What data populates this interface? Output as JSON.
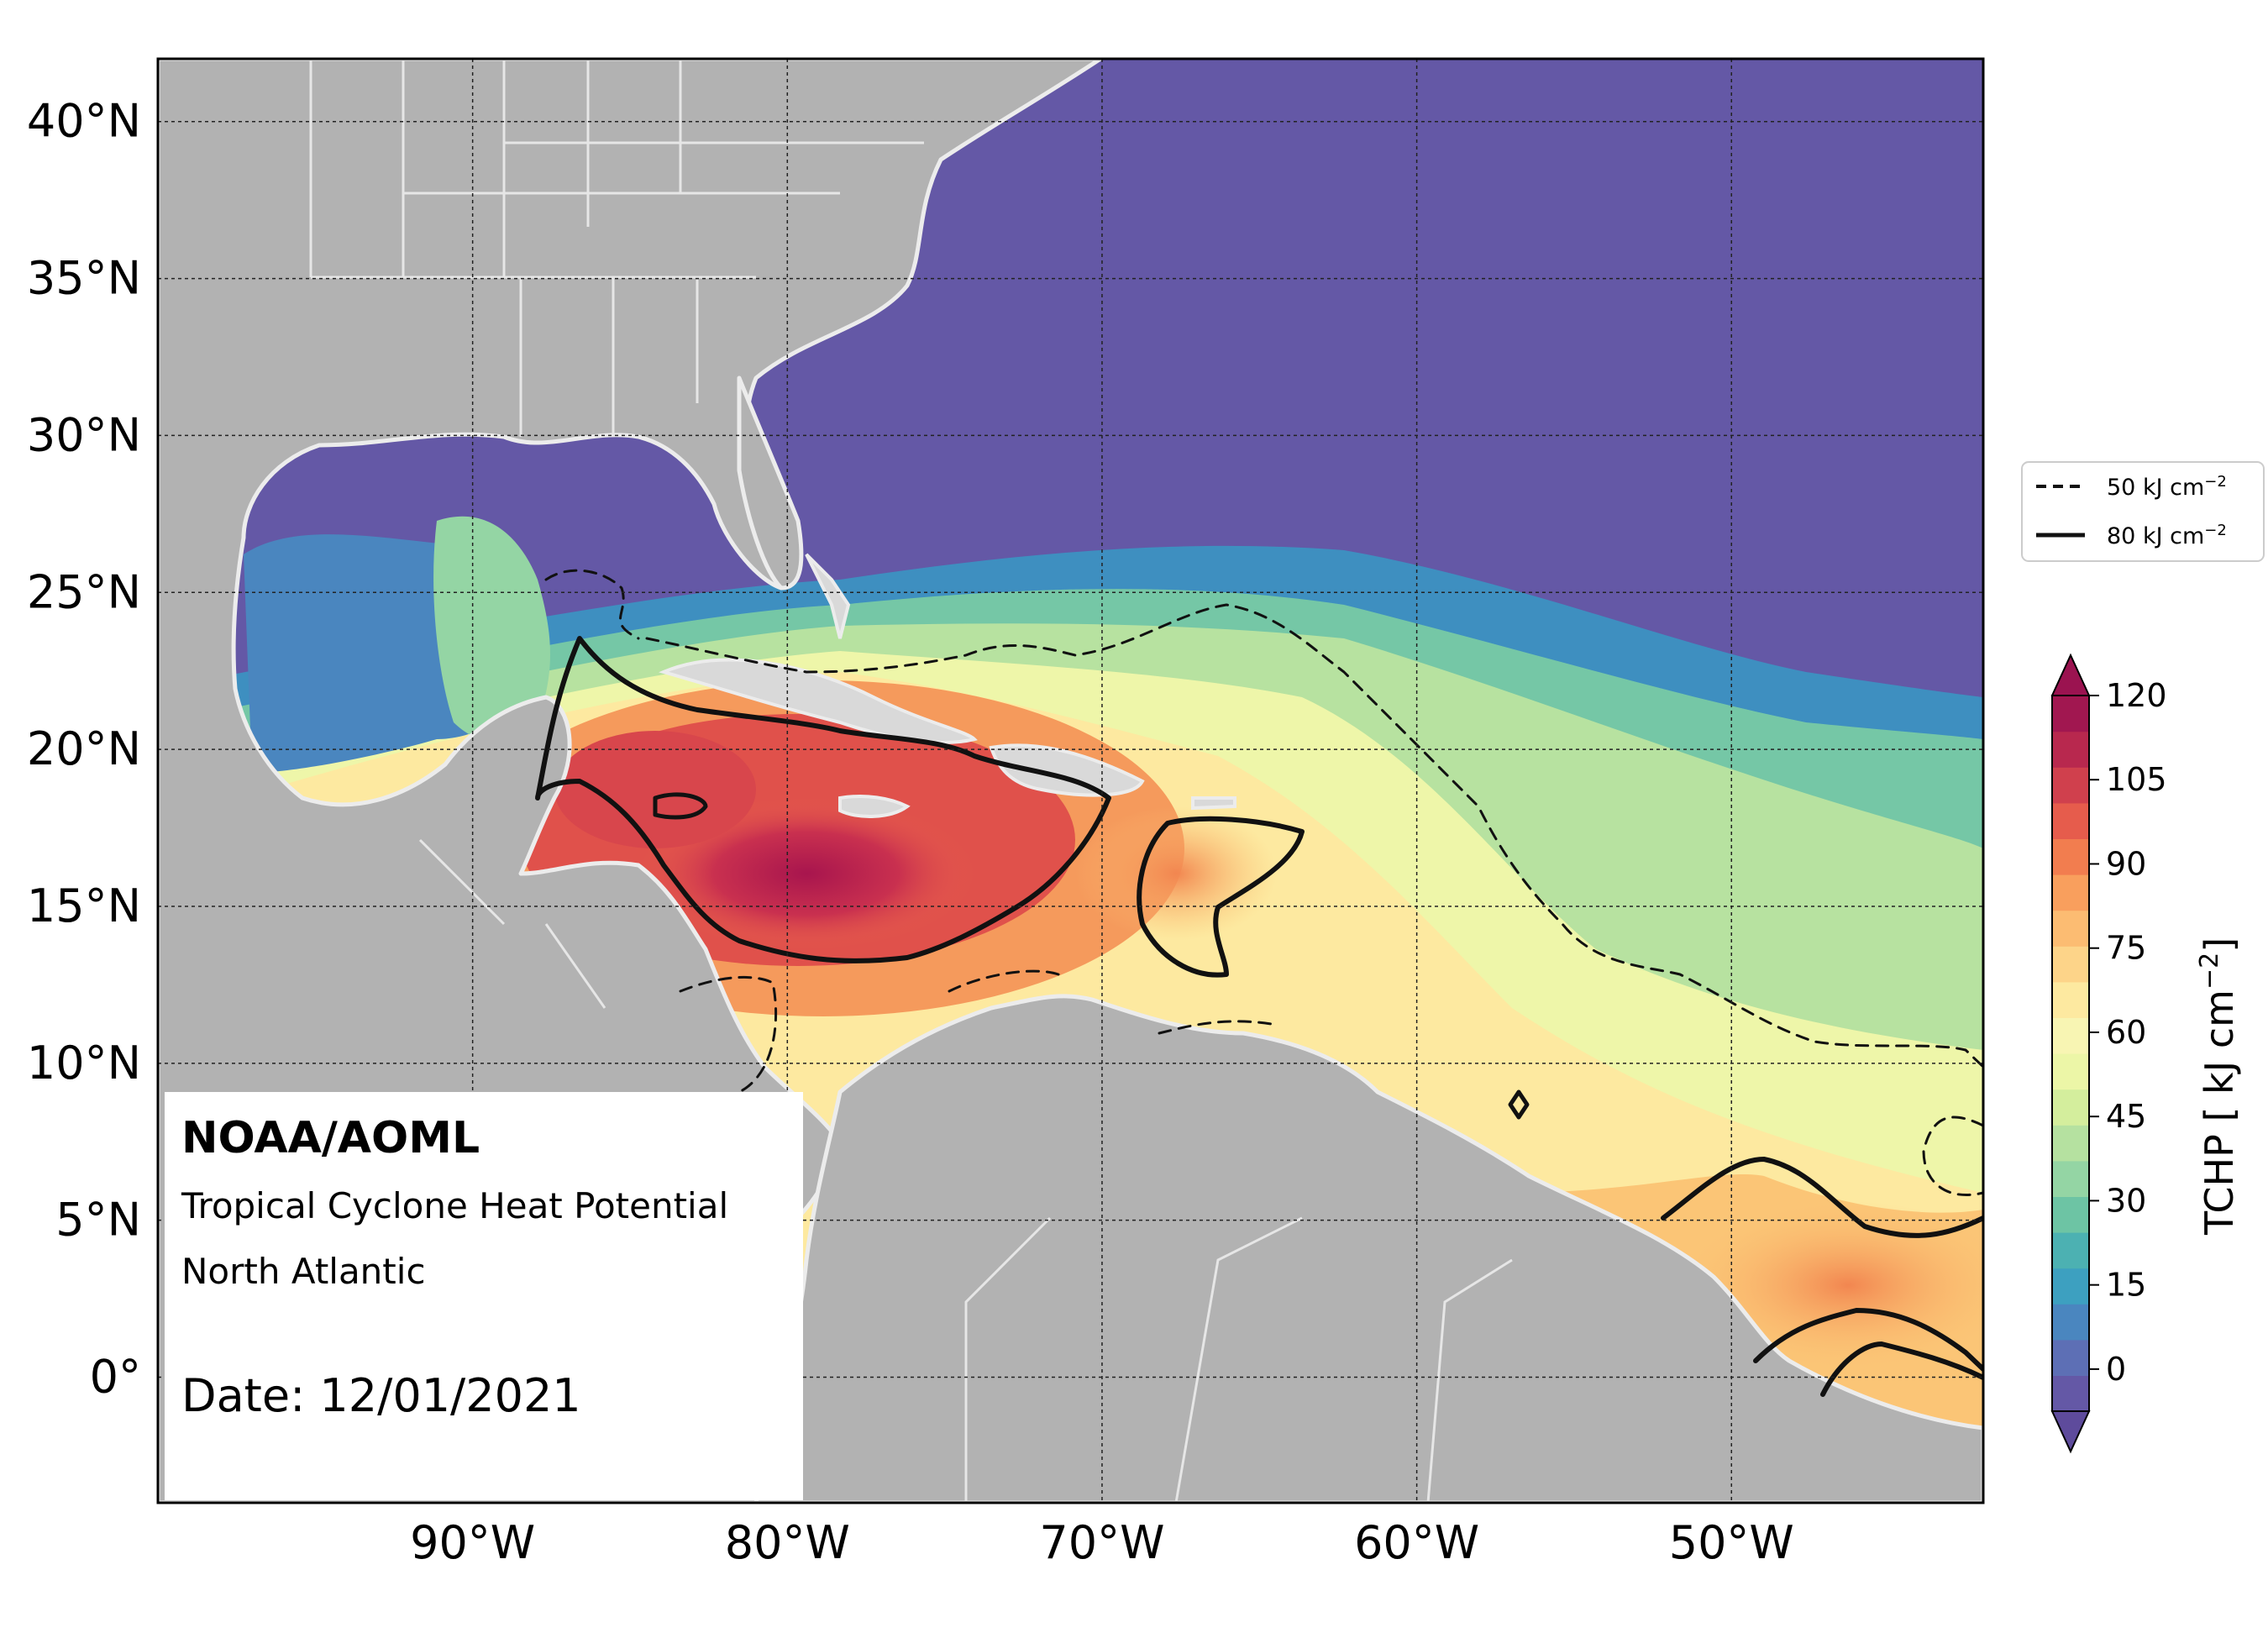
{
  "map": {
    "region": "North Atlantic",
    "lon_range": [
      -100,
      -42
    ],
    "lat_range": [
      -4,
      42
    ],
    "lat_ticks": [
      {
        "value": 40,
        "label": "40°N"
      },
      {
        "value": 35,
        "label": "35°N"
      },
      {
        "value": 30,
        "label": "30°N"
      },
      {
        "value": 25,
        "label": "25°N"
      },
      {
        "value": 20,
        "label": "20°N"
      },
      {
        "value": 15,
        "label": "15°N"
      },
      {
        "value": 10,
        "label": "10°N"
      },
      {
        "value": 5,
        "label": "5°N"
      },
      {
        "value": 0,
        "label": "0°"
      }
    ],
    "lon_ticks": [
      {
        "value": -90,
        "label": "90°W"
      },
      {
        "value": -80,
        "label": "80°W"
      },
      {
        "value": -70,
        "label": "70°W"
      },
      {
        "value": -60,
        "label": "60°W"
      },
      {
        "value": -50,
        "label": "50°W"
      }
    ],
    "gridlines": true
  },
  "info": {
    "org": "NOAA/AOML",
    "product": "Tropical Cyclone Heat Potential",
    "region": "North Atlantic",
    "date": "Date: 12/01/2021"
  },
  "legend": {
    "items": [
      {
        "label": "50 kJ cm",
        "sup": "−2",
        "style": "dashed"
      },
      {
        "label": "80 kJ cm",
        "sup": "−2",
        "style": "solid"
      }
    ]
  },
  "colorbar": {
    "title": "TCHP [ kJ cm",
    "title_sup": "−2",
    "title_end": "]",
    "ticks": [
      "120",
      "105",
      "90",
      "75",
      "60",
      "45",
      "30",
      "15",
      "0"
    ],
    "colors": [
      "#6458a6",
      "#5d6fb5",
      "#4a86bf",
      "#3da0c0",
      "#4cb1b2",
      "#6dc4a4",
      "#94d5a4",
      "#b5e1a0",
      "#d4ee9d",
      "#ecf6a7",
      "#f8f5b3",
      "#fde9a0",
      "#fdd489",
      "#fcbc72",
      "#f99f5d",
      "#f27d4f",
      "#e65c4c",
      "#d0404d",
      "#b8284e",
      "#a11750"
    ],
    "contour_levels": [
      50,
      80
    ]
  }
}
